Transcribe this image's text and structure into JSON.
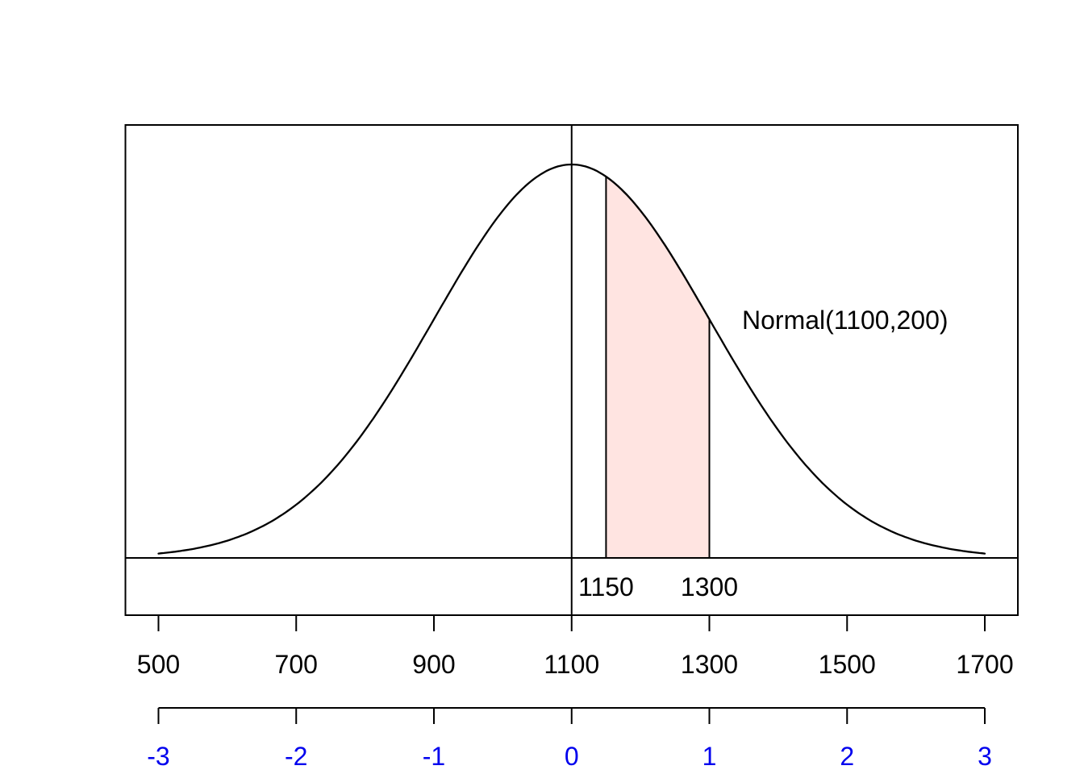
{
  "chart_data": {
    "type": "line",
    "title": "",
    "annotation_label": "Normal(1100,200)",
    "distribution": {
      "family": "Normal",
      "mean": 1100,
      "sd": 200
    },
    "curve": {
      "x_start": 500,
      "x_end": 1700,
      "color": "#000000"
    },
    "center_line_x": 1100,
    "shaded_region": {
      "from": 1150,
      "to": 1300,
      "from_label": "1150",
      "to_label": "1300",
      "fill_color": "#ffe4e1",
      "border_color": "#000000"
    },
    "x_axis": {
      "tick_values": [
        500,
        700,
        900,
        1100,
        1300,
        1500,
        1700
      ],
      "tick_labels": [
        "500",
        "700",
        "900",
        "1100",
        "1300",
        "1500",
        "1700"
      ],
      "label_color": "#000000",
      "line_color": "#000000"
    },
    "z_axis": {
      "tick_values": [
        -3,
        -2,
        -1,
        0,
        1,
        2,
        3
      ],
      "tick_labels": [
        "-3",
        "-2",
        "-1",
        "0",
        "1",
        "2",
        "3"
      ],
      "label_color": "#0000ee",
      "line_color": "#000000"
    },
    "xlim": [
      452,
      1748
    ],
    "grid": "off",
    "background": "#ffffff"
  }
}
